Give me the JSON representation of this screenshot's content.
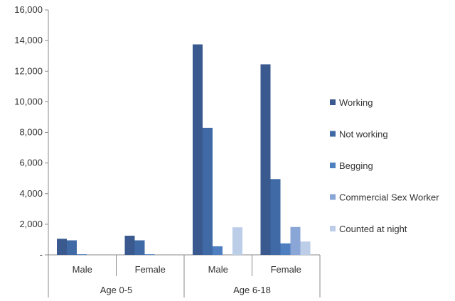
{
  "chart_data": {
    "type": "bar",
    "groups": [
      {
        "label": "Age 0-5",
        "categories": [
          "Male",
          "Female"
        ]
      },
      {
        "label": "Age 6-18",
        "categories": [
          "Male",
          "Female"
        ]
      }
    ],
    "categories": [
      "Male",
      "Female",
      "Male",
      "Female"
    ],
    "series": [
      {
        "name": "Working",
        "color": "#3a5a8f",
        "values": [
          1050,
          1250,
          13750,
          12450
        ]
      },
      {
        "name": "Not working",
        "color": "#3f6aa6",
        "values": [
          950,
          950,
          8300,
          4950
        ]
      },
      {
        "name": "Begging",
        "color": "#4e7fc1",
        "values": [
          40,
          40,
          560,
          750
        ]
      },
      {
        "name": "Commercial Sex Worker",
        "color": "#8aa6d6",
        "values": [
          0,
          0,
          0,
          1820
        ]
      },
      {
        "name": "Counted at night",
        "color": "#bccde8",
        "values": [
          0,
          0,
          1800,
          870
        ]
      }
    ],
    "ylim": [
      0,
      16000
    ],
    "yticks": [
      0,
      2000,
      4000,
      6000,
      8000,
      10000,
      12000,
      14000,
      16000
    ],
    "ytick_labels": [
      "-",
      "2,000",
      "4,000",
      "6,000",
      "8,000",
      "10,000",
      "12,000",
      "14,000",
      "16,000"
    ],
    "grid": false,
    "legend": "right",
    "title": "",
    "xlabel": "",
    "ylabel": ""
  }
}
